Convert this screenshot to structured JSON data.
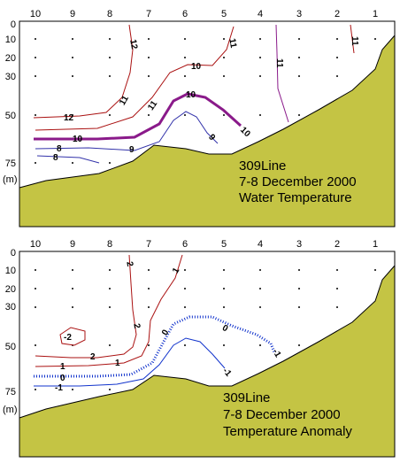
{
  "station_labels": [
    "10",
    "9",
    "8",
    "7",
    "6",
    "5",
    "4",
    "3",
    "2",
    "1"
  ],
  "depth_labels": [
    "0",
    "10",
    "20",
    "30",
    "50",
    "75"
  ],
  "depth_unit": "(m)",
  "colors": {
    "seabed": "#c4c444",
    "contour_red": "#aa1111",
    "contour_blue": "#1133cc",
    "contour_purple": "#8a1a8a"
  },
  "panels": [
    {
      "id": "water-temperature",
      "caption": [
        "309Line",
        "7-8 December 2000",
        "Water Temperature"
      ],
      "contour_labels": [
        "12",
        "11",
        "11",
        "11",
        "10",
        "11",
        "12",
        "11",
        "10",
        "10",
        "9",
        "9",
        "10",
        "8",
        "8"
      ]
    },
    {
      "id": "temperature-anomaly",
      "caption": [
        "309Line",
        "7-8 December 2000",
        "Temperature Anomaly"
      ],
      "contour_labels": [
        "2",
        "1",
        "2",
        "-2",
        "2",
        "1",
        "-1",
        "1",
        "0",
        "0",
        "0",
        "-1",
        "-1"
      ]
    }
  ]
}
